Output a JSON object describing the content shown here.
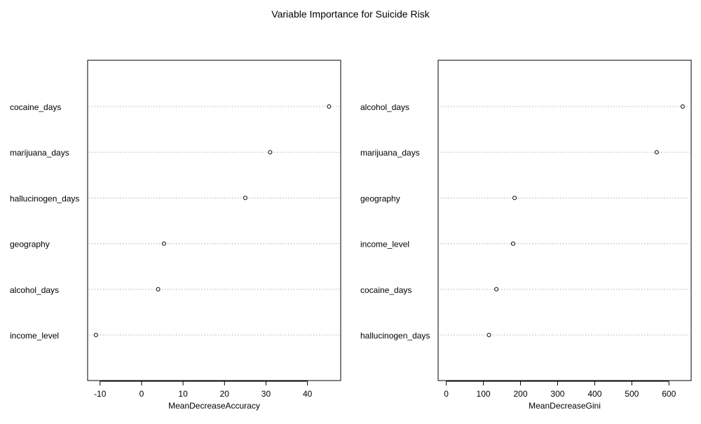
{
  "title": "Variable Importance for Suicide Risk",
  "chart_data": [
    {
      "type": "scatter",
      "subtype": "dotchart",
      "xlabel": "MeanDecreaseAccuracy",
      "xlim": [
        -13,
        48
      ],
      "xticks": [
        -10,
        0,
        10,
        20,
        30,
        40
      ],
      "grid": "dotted horizontal lines per variable",
      "categories": [
        "cocaine_days",
        "marijuana_days",
        "hallucinogen_days",
        "geography",
        "alcohol_days",
        "income_level"
      ],
      "values": [
        45.2,
        31.0,
        25.0,
        5.4,
        4.0,
        -11.0
      ]
    },
    {
      "type": "scatter",
      "subtype": "dotchart",
      "xlabel": "MeanDecreaseGini",
      "xlim": [
        -22,
        660
      ],
      "xticks": [
        0,
        100,
        200,
        300,
        400,
        500,
        600
      ],
      "grid": "dotted horizontal lines per variable",
      "categories": [
        "alcohol_days",
        "marijuana_days",
        "geography",
        "income_level",
        "cocaine_days",
        "hallucinogen_days"
      ],
      "values": [
        637,
        567,
        184,
        180,
        135,
        115
      ]
    }
  ]
}
